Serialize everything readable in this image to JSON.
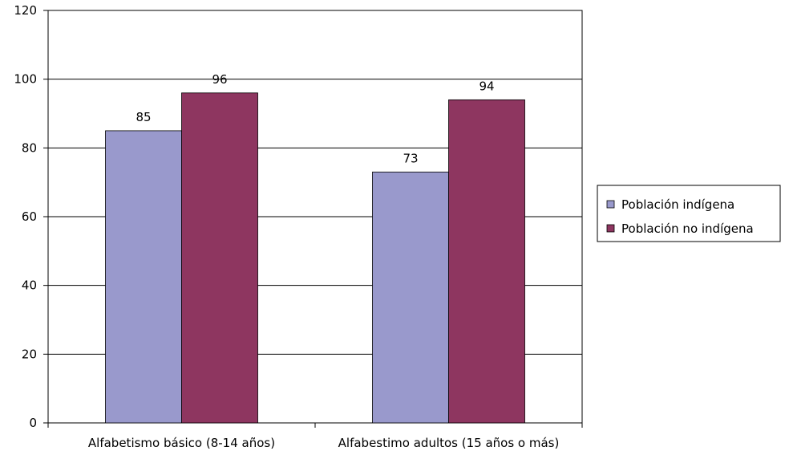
{
  "chart_data": {
    "type": "bar",
    "categories": [
      "Alfabetismo básico (8-14 años)",
      "Alfabestimo adultos (15 años o más)"
    ],
    "series": [
      {
        "name": "Población indígena",
        "values": [
          85,
          73
        ],
        "color": "#9999cc"
      },
      {
        "name": "Población no indígena",
        "values": [
          96,
          94
        ],
        "color": "#8e3660"
      }
    ],
    "ylim": [
      0,
      120
    ],
    "yticks": [
      0,
      20,
      40,
      60,
      80,
      100,
      120
    ],
    "grid": true,
    "legend": "right"
  }
}
